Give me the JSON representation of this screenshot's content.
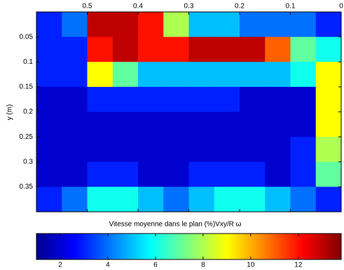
{
  "chart_data": {
    "type": "heatmap",
    "xlim": [
      0.6,
      0
    ],
    "ylim": [
      0,
      0.4
    ],
    "xticks": [
      0.5,
      0.4,
      0.3,
      0.2,
      0.1,
      0
    ],
    "yticks": [
      0.05,
      0.1,
      0.15,
      0.2,
      0.25,
      0.3,
      0.35
    ],
    "ylabel": "y (m)",
    "colormap": "jet",
    "colorbar": {
      "label": "Vitesse moyenne dans le plan (%)Vxy/R  ω",
      "clim": [
        1,
        13.8
      ],
      "ticks": [
        2,
        4,
        6,
        8,
        10,
        12
      ]
    },
    "z": [
      [
        3,
        4,
        13,
        13,
        12,
        8,
        5,
        5,
        4,
        4,
        4,
        3
      ],
      [
        3,
        3,
        12,
        13,
        12,
        12,
        13,
        13,
        13,
        11,
        7,
        6
      ],
      [
        3,
        3,
        9,
        7,
        5,
        5,
        5,
        5,
        5,
        5,
        6,
        9
      ],
      [
        2,
        2,
        3,
        3,
        3,
        3,
        3,
        3,
        2,
        2,
        2,
        9
      ],
      [
        2,
        2,
        2,
        2,
        2,
        2,
        2,
        2,
        2,
        2,
        2,
        9
      ],
      [
        2,
        2,
        2,
        2,
        2,
        2,
        2,
        2,
        2,
        2,
        3,
        8
      ],
      [
        2,
        2,
        3,
        3,
        2,
        2,
        3,
        3,
        3,
        2,
        3,
        7
      ],
      [
        3,
        4,
        6,
        6,
        5,
        4,
        5,
        6,
        6,
        5,
        4,
        3
      ]
    ]
  }
}
